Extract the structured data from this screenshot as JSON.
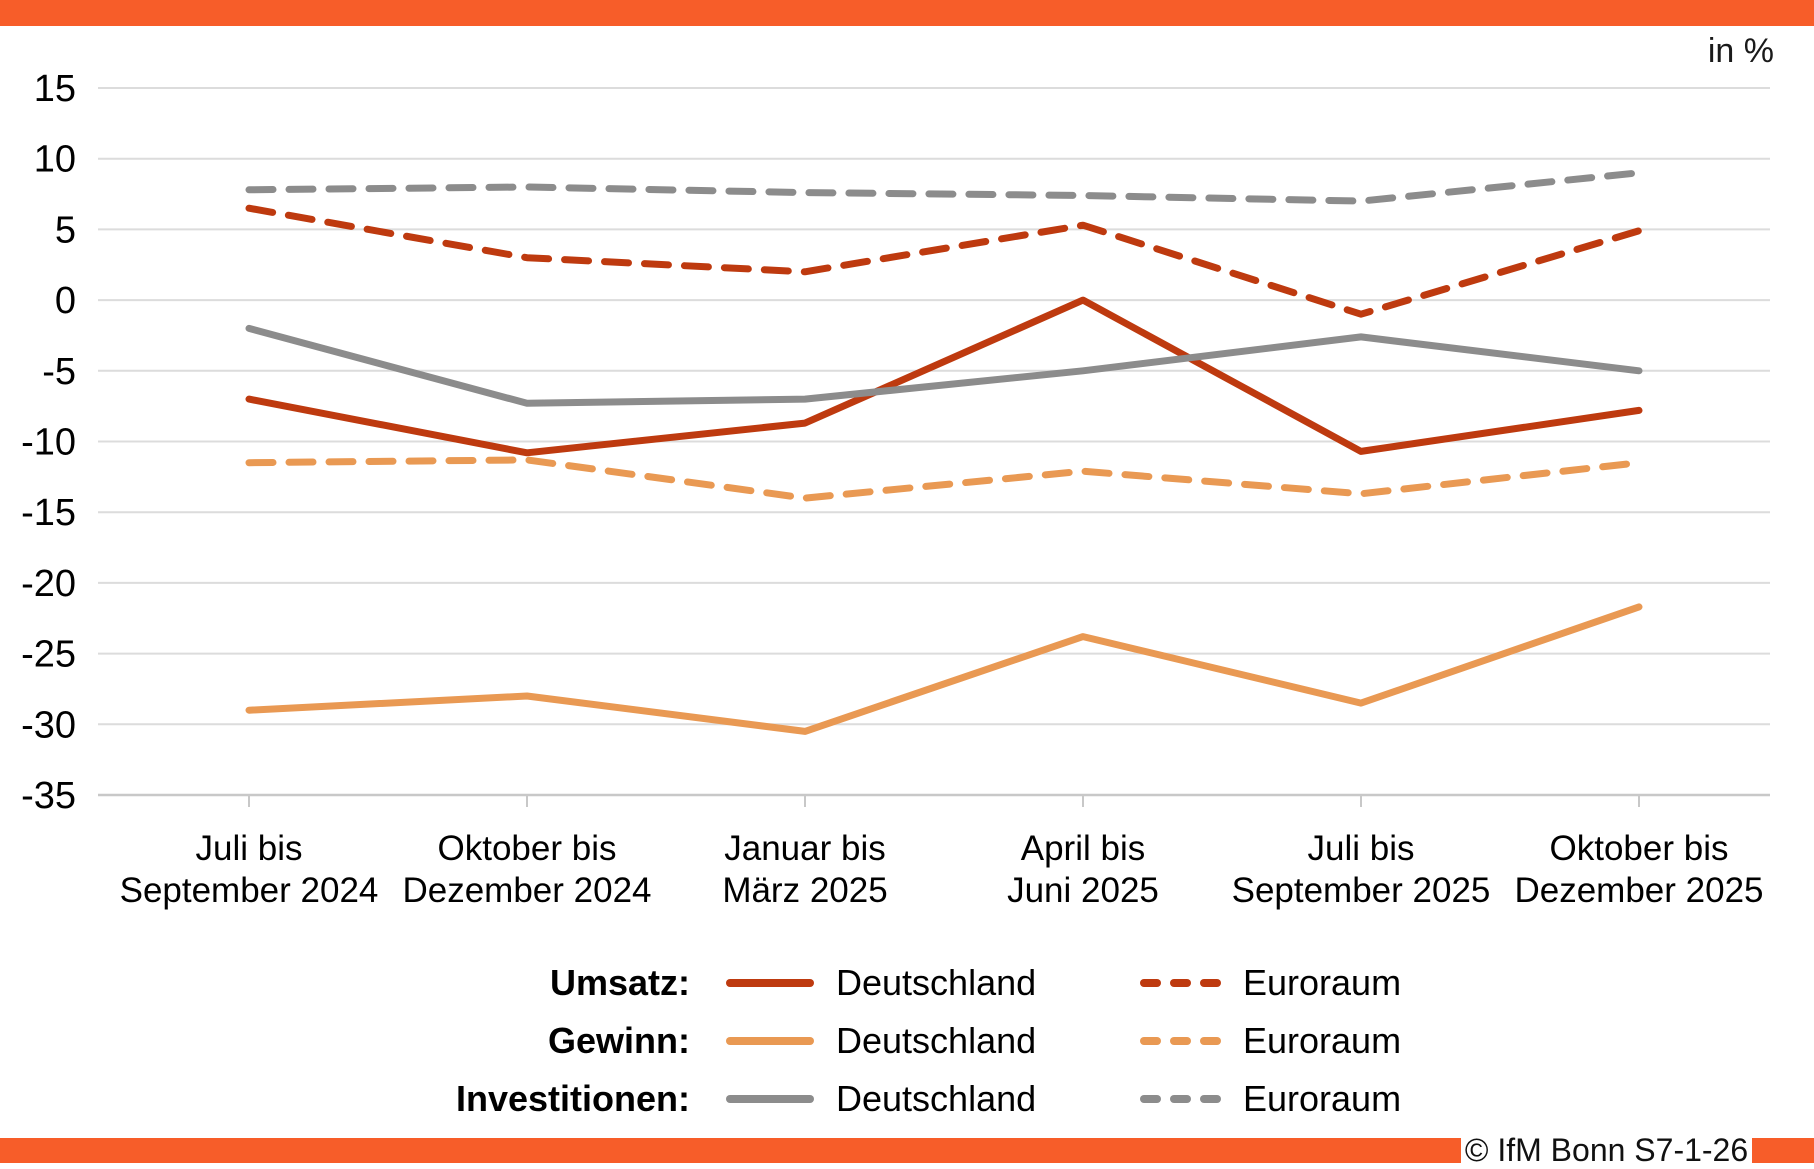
{
  "header": {
    "units_label": "in %"
  },
  "footer": {
    "copyright": "© IfM Bonn S7-1-26"
  },
  "colors": {
    "accent_bar": "#F75D29",
    "umsatz": "#BE3A0F",
    "gewinn": "#E99953",
    "investitionen": "#8C8C8C",
    "gridline": "#DCDCDC",
    "axis_line": "#C8C8C8",
    "text": "#000000"
  },
  "chart_data": {
    "type": "line",
    "units": "in %",
    "title": "",
    "xlabel": "",
    "ylabel": "",
    "ylim": [
      -35,
      15
    ],
    "ytick_step": 5,
    "grid": true,
    "legend_position": "bottom",
    "categories": [
      [
        "Juli bis",
        "September 2024"
      ],
      [
        "Oktober bis",
        "Dezember 2024"
      ],
      [
        "Januar bis",
        "März 2025"
      ],
      [
        "April bis",
        "Juni 2025"
      ],
      [
        "Juli bis",
        "September 2025"
      ],
      [
        "Oktober bis",
        "Dezember 2025"
      ]
    ],
    "series": [
      {
        "name": "Umsatz Deutschland",
        "group": "Umsatz",
        "region": "Deutschland",
        "style": "solid",
        "color": "#BE3A0F",
        "values": [
          -7.0,
          -10.8,
          -8.7,
          0.0,
          -10.7,
          -7.8
        ]
      },
      {
        "name": "Umsatz Euroraum",
        "group": "Umsatz",
        "region": "Euroraum",
        "style": "dashed",
        "color": "#BE3A0F",
        "values": [
          6.5,
          3.0,
          2.0,
          5.3,
          -1.0,
          4.9
        ]
      },
      {
        "name": "Gewinn Deutschland",
        "group": "Gewinn",
        "region": "Deutschland",
        "style": "solid",
        "color": "#E99953",
        "values": [
          -29.0,
          -28.0,
          -30.5,
          -23.8,
          -28.5,
          -21.7
        ]
      },
      {
        "name": "Gewinn Euroraum",
        "group": "Gewinn",
        "region": "Euroraum",
        "style": "dashed",
        "color": "#E99953",
        "values": [
          -11.5,
          -11.3,
          -14.0,
          -12.1,
          -13.7,
          -11.5
        ]
      },
      {
        "name": "Investitionen Deutschland",
        "group": "Investitionen",
        "region": "Deutschland",
        "style": "solid",
        "color": "#8C8C8C",
        "values": [
          -2.0,
          -7.3,
          -7.0,
          -5.0,
          -2.6,
          -5.0
        ]
      },
      {
        "name": "Investitionen Euroraum",
        "group": "Investitionen",
        "region": "Euroraum",
        "style": "dashed",
        "color": "#8C8C8C",
        "values": [
          7.8,
          8.0,
          7.6,
          7.4,
          7.0,
          9.0
        ]
      }
    ]
  },
  "legend": {
    "rows": [
      {
        "label": "Umsatz:",
        "color": "#BE3A0F",
        "solid_label": "Deutschland",
        "dashed_label": "Euroraum"
      },
      {
        "label": "Gewinn:",
        "color": "#E99953",
        "solid_label": "Deutschland",
        "dashed_label": "Euroraum"
      },
      {
        "label": "Investitionen:",
        "color": "#8C8C8C",
        "solid_label": "Deutschland",
        "dashed_label": "Euroraum"
      }
    ]
  }
}
